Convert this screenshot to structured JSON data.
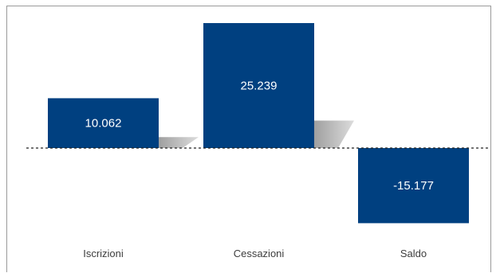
{
  "chart_data": {
    "type": "bar",
    "categories": [
      "Iscrizioni",
      "Cessazioni",
      "Saldo"
    ],
    "values": [
      10062,
      25239,
      -15177
    ],
    "data_labels": [
      "10.062",
      "25.239",
      "-15.177"
    ],
    "title": "",
    "xlabel": "",
    "ylabel": "",
    "ylim": [
      -17000,
      28000
    ],
    "grid": false,
    "legend": "none",
    "bar_color": "#004080",
    "shadow_color": "#b3b3b3",
    "zero_line": "dashed"
  }
}
